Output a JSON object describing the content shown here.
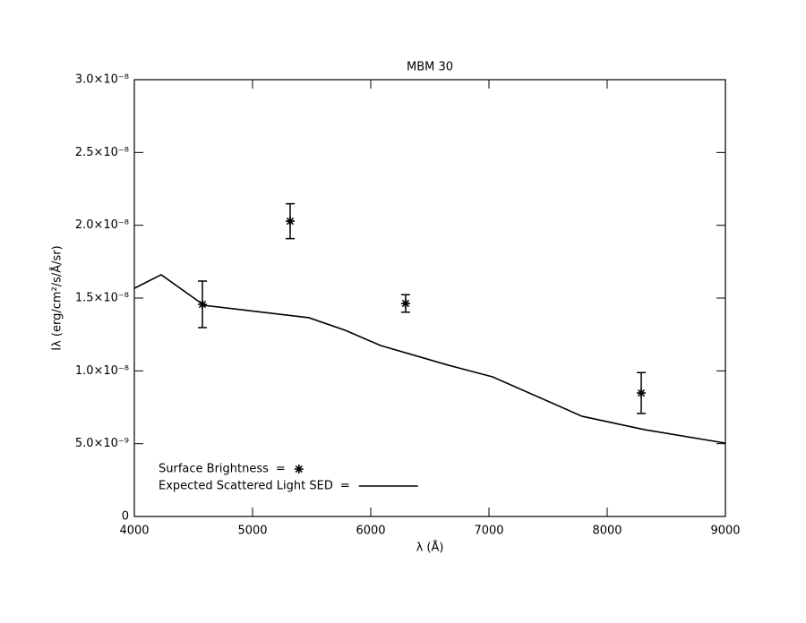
{
  "chart_data": {
    "type": "line",
    "title": "MBM 30",
    "x_label": "λ (Å)",
    "y_label": "Iλ (erg/cm²/s/Å/sr)",
    "xlim": [
      4000,
      9000
    ],
    "xticks": [
      4000,
      5000,
      6000,
      7000,
      8000,
      9000
    ],
    "ylim": [
      0,
      3e-08
    ],
    "yticks": [
      0,
      {
        "value": 5e-09,
        "label": "5.0×10⁻⁹"
      },
      {
        "value": 1e-08,
        "label": "1.0×10⁻⁸"
      },
      {
        "value": 1.5e-08,
        "label": "1.5×10⁻⁸"
      },
      {
        "value": 2e-08,
        "label": "2.0×10⁻⁸"
      },
      {
        "value": 2.5e-08,
        "label": "2.5×10⁻⁸"
      },
      {
        "value": 3e-08,
        "label": "3.0×10⁻⁸"
      }
    ],
    "legend_suffix": "=",
    "series": [
      {
        "name": "Surface Brightness",
        "type": "scatter",
        "marker": "asterisk",
        "color": "#000000",
        "x": [
          4576,
          5318,
          6295,
          8288
        ],
        "values": [
          1.457e-08,
          2.028e-08,
          1.463e-08,
          8.48e-09
        ],
        "errors": [
          1.6e-09,
          1.2e-09,
          6e-10,
          1.4e-09
        ]
      },
      {
        "name": "Expected Scattered Light SED",
        "type": "line",
        "color": "#000000",
        "x": [
          4000,
          4227,
          4591,
          5477,
          5780,
          6083,
          6652,
          7030,
          7788,
          8318,
          9000
        ],
        "values": [
          1.567e-08,
          1.66e-08,
          1.45e-08,
          1.365e-08,
          1.28e-08,
          1.174e-08,
          1.04e-08,
          9.59e-09,
          6.88e-09,
          5.96e-09,
          5.04e-09
        ]
      }
    ]
  }
}
